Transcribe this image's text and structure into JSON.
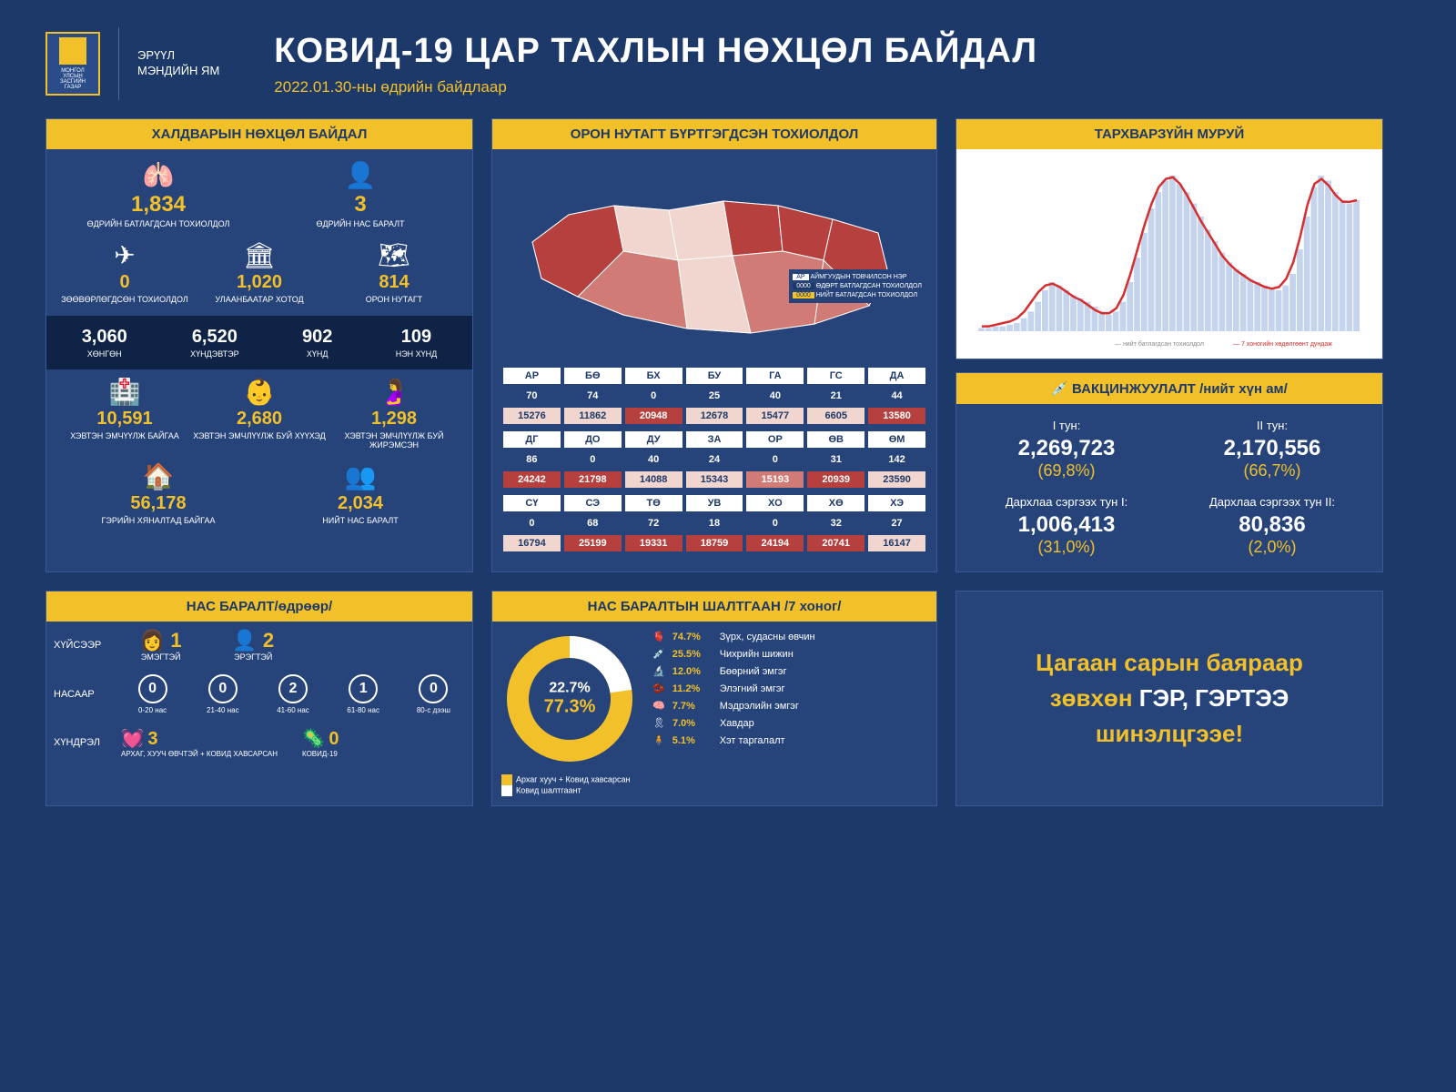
{
  "colors": {
    "bg": "#1d3969",
    "panel": "#26447a",
    "accent": "#f2c029",
    "dark": "#0f2347",
    "map_dark": "#b5403e",
    "map_mid": "#d17b76",
    "map_light": "#f0d6ce",
    "white": "#ffffff",
    "red_line": "#d62e2e"
  },
  "header": {
    "logo_top": "МОНГОЛ УЛСЫН ЗАСГИЙН ГАЗАР",
    "ministry_l1": "ЭРҮҮЛ",
    "ministry_l2": "МЭНДИЙН ЯМ",
    "title": "КОВИД-19 ЦАР ТАХЛЫН НӨХЦӨЛ БАЙДАЛ",
    "date": "2022.01.30-ны өдрийн байдлаар"
  },
  "infection": {
    "title": "ХАЛДВАРЫН НӨХЦӨЛ БАЙДАЛ",
    "top": [
      {
        "icon": "🫁",
        "num": "1,834",
        "lbl": "ӨДРИЙН БАТЛАГДСАН ТОХИОЛДОЛ"
      },
      {
        "icon": "👤",
        "num": "3",
        "lbl": "ӨДРИЙН НАС БАРАЛТ"
      }
    ],
    "mid": [
      {
        "icon": "✈",
        "num": "0",
        "lbl": "ЗӨӨВӨРЛӨГДСӨН ТОХИОЛДОЛ"
      },
      {
        "icon": "🏛",
        "num": "1,020",
        "lbl": "УЛААНБААТАР ХОТОД"
      },
      {
        "icon": "🗺",
        "num": "814",
        "lbl": "ОРОН НУТАГТ"
      }
    ],
    "severity": [
      {
        "num": "3,060",
        "lbl": "ХӨНГӨН"
      },
      {
        "num": "6,520",
        "lbl": "ХҮНДЭВТЭР"
      },
      {
        "num": "902",
        "lbl": "ХҮНД"
      },
      {
        "num": "109",
        "lbl": "НЭН ХҮНД"
      }
    ],
    "bottom": [
      {
        "icon": "🏥",
        "num": "10,591",
        "lbl": "ХЭВТЭН ЭМЧҮҮЛЖ БАЙГАА"
      },
      {
        "icon": "👶",
        "num": "2,680",
        "lbl": "ХЭВТЭН ЭМЧЛҮҮЛЖ БУЙ ХҮҮХЭД"
      },
      {
        "icon": "🤰",
        "num": "1,298",
        "lbl": "ХЭВТЭН ЭМЧЛҮҮЛЖ БУЙ ЖИРЭМСЭН"
      }
    ],
    "bottom2": [
      {
        "icon": "🏠",
        "num": "56,178",
        "lbl": "ГЭРИЙН ХЯНАЛТАД БАЙГАА"
      },
      {
        "icon": "👥",
        "num": "2,034",
        "lbl": "НИЙТ НАС БАРАЛТ"
      }
    ]
  },
  "regions": {
    "title": "ОРОН НУТАГТ БҮРТГЭГДСЭН ТОХИОЛДОЛ",
    "legend": {
      "ar": "АР",
      "l1": "АЙМГУУДЫН ТОВЧИЛСОН НЭР",
      "l2": "ӨДӨРТ БАТЛАГДСАН ТОХИОЛДОЛ",
      "l3": "НИЙТ БАТЛАГДСАН ТОХИОЛДОЛ"
    },
    "rows": [
      {
        "codes": [
          "АР",
          "БӨ",
          "БХ",
          "БУ",
          "ГА",
          "ГС",
          "ДА"
        ],
        "today": [
          "70",
          "74",
          "0",
          "25",
          "40",
          "21",
          "44"
        ],
        "total": [
          "15276",
          "11862",
          "20948",
          "12678",
          "15477",
          "6605",
          "13580"
        ],
        "colors": [
          "#f0d6ce",
          "#f0d6ce",
          "#b5403e",
          "#f0d6ce",
          "#f0d6ce",
          "#f0d6ce",
          "#b5403e"
        ]
      },
      {
        "codes": [
          "ДГ",
          "ДО",
          "ДУ",
          "ЗА",
          "ОР",
          "ӨВ",
          "ӨМ"
        ],
        "today": [
          "86",
          "0",
          "40",
          "24",
          "0",
          "31",
          "142"
        ],
        "total": [
          "24242",
          "21798",
          "14088",
          "15343",
          "15193",
          "20939",
          "23590"
        ],
        "colors": [
          "#b5403e",
          "#b5403e",
          "#f0d6ce",
          "#f0d6ce",
          "#d17b76",
          "#b5403e",
          "#f0d6ce"
        ]
      },
      {
        "codes": [
          "СҮ",
          "СЭ",
          "ТӨ",
          "УВ",
          "ХО",
          "ХӨ",
          "ХЭ"
        ],
        "today": [
          "0",
          "68",
          "72",
          "18",
          "0",
          "32",
          "27"
        ],
        "total": [
          "16794",
          "25199",
          "19331",
          "18759",
          "24194",
          "20741",
          "16147"
        ],
        "colors": [
          "#f0d6ce",
          "#b5403e",
          "#b5403e",
          "#b5403e",
          "#b5403e",
          "#b5403e",
          "#f0d6ce"
        ]
      }
    ]
  },
  "curve": {
    "title": "ТАРХВАРЗҮЙН МУРУЙ",
    "legend1": "нийт батлагдсан тохиолдол",
    "legend2": "7 хоногийн хөдөлгөөнт дундаж"
  },
  "vax": {
    "title": "ВАКЦИНЖУУЛАЛТ /нийт хүн ам/",
    "items": [
      {
        "lbl": "I тун:",
        "num": "2,269,723",
        "pct": "(69,8%)"
      },
      {
        "lbl": "II тун:",
        "num": "2,170,556",
        "pct": "(66,7%)"
      },
      {
        "lbl": "Дархлаа сэргээх тун I:",
        "num": "1,006,413",
        "pct": "(31,0%)"
      },
      {
        "lbl": "Дархлаа сэргээх тун II:",
        "num": "80,836",
        "pct": "(2,0%)"
      }
    ]
  },
  "deaths": {
    "title": "НАС БАРАЛТ/өдрөөр/",
    "gender": {
      "label": "ХҮЙСЭЭР",
      "f": {
        "num": "1",
        "lbl": "ЭМЭГТЭЙ"
      },
      "m": {
        "num": "2",
        "lbl": "ЭРЭГТЭЙ"
      }
    },
    "age": {
      "label": "НАСААР",
      "items": [
        {
          "num": "0",
          "lbl": "0-20 нас"
        },
        {
          "num": "0",
          "lbl": "21-40 нас"
        },
        {
          "num": "2",
          "lbl": "41-60 нас"
        },
        {
          "num": "1",
          "lbl": "61-80 нас"
        },
        {
          "num": "0",
          "lbl": "80-с дээш"
        }
      ]
    },
    "comp": {
      "label": "ХҮНДРЭЛ",
      "items": [
        {
          "icon": "💓",
          "num": "3",
          "lbl": "АРХАГ, ХУУЧ ӨВЧТЭЙ + КОВИД ХАВСАРСАН"
        },
        {
          "icon": "🦠",
          "num": "0",
          "lbl": "КОВИД-19"
        }
      ]
    }
  },
  "causes": {
    "title": "НАС БАРАЛТЫН ШАЛТГААН /7 хоног/",
    "donut": {
      "a": "22.7%",
      "b": "77.3%",
      "a_color": "#ffffff",
      "b_color": "#f2c029"
    },
    "legend": [
      {
        "c": "#f2c029",
        "t": "Архаг хууч + Ковид хавсарсан"
      },
      {
        "c": "#ffffff",
        "t": "Ковид шалтгаант"
      }
    ],
    "list": [
      {
        "icon": "🫀",
        "pct": "74.7%",
        "t": "Зүрх, судасны өвчин"
      },
      {
        "icon": "💉",
        "pct": "25.5%",
        "t": "Чихрийн шижин"
      },
      {
        "icon": "🔬",
        "pct": "12.0%",
        "t": "Бөөрний эмгэг"
      },
      {
        "icon": "🫘",
        "pct": "11.2%",
        "t": "Элэгний эмгэг"
      },
      {
        "icon": "🧠",
        "pct": "7.7%",
        "t": "Мэдрэлийн эмгэг"
      },
      {
        "icon": "🎗",
        "pct": "7.0%",
        "t": "Хавдар"
      },
      {
        "icon": "🧍",
        "pct": "5.1%",
        "t": "Хэт таргалалт"
      }
    ]
  },
  "message": {
    "l1": "Цагаан сарын баяраар",
    "l2": "зөвхөн ГЭР, ГЭРТЭЭ",
    "l3": "шинэлцгээе!"
  },
  "curve_data": {
    "bars": [
      2,
      2,
      3,
      3,
      4,
      5,
      8,
      12,
      18,
      25,
      30,
      28,
      25,
      22,
      20,
      18,
      15,
      12,
      10,
      12,
      18,
      30,
      45,
      60,
      75,
      85,
      92,
      95,
      90,
      85,
      78,
      70,
      62,
      55,
      48,
      42,
      38,
      35,
      32,
      30,
      28,
      26,
      25,
      28,
      35,
      50,
      70,
      88,
      95,
      92,
      85,
      80,
      78,
      80
    ],
    "line": [
      3,
      3,
      4,
      5,
      6,
      8,
      12,
      18,
      24,
      28,
      29,
      27,
      24,
      21,
      19,
      16,
      13,
      11,
      11,
      14,
      22,
      35,
      50,
      65,
      78,
      88,
      93,
      94,
      90,
      83,
      75,
      67,
      60,
      53,
      46,
      41,
      37,
      34,
      31,
      29,
      27,
      26,
      27,
      32,
      42,
      58,
      77,
      90,
      93,
      89,
      83,
      79,
      79,
      80
    ]
  }
}
